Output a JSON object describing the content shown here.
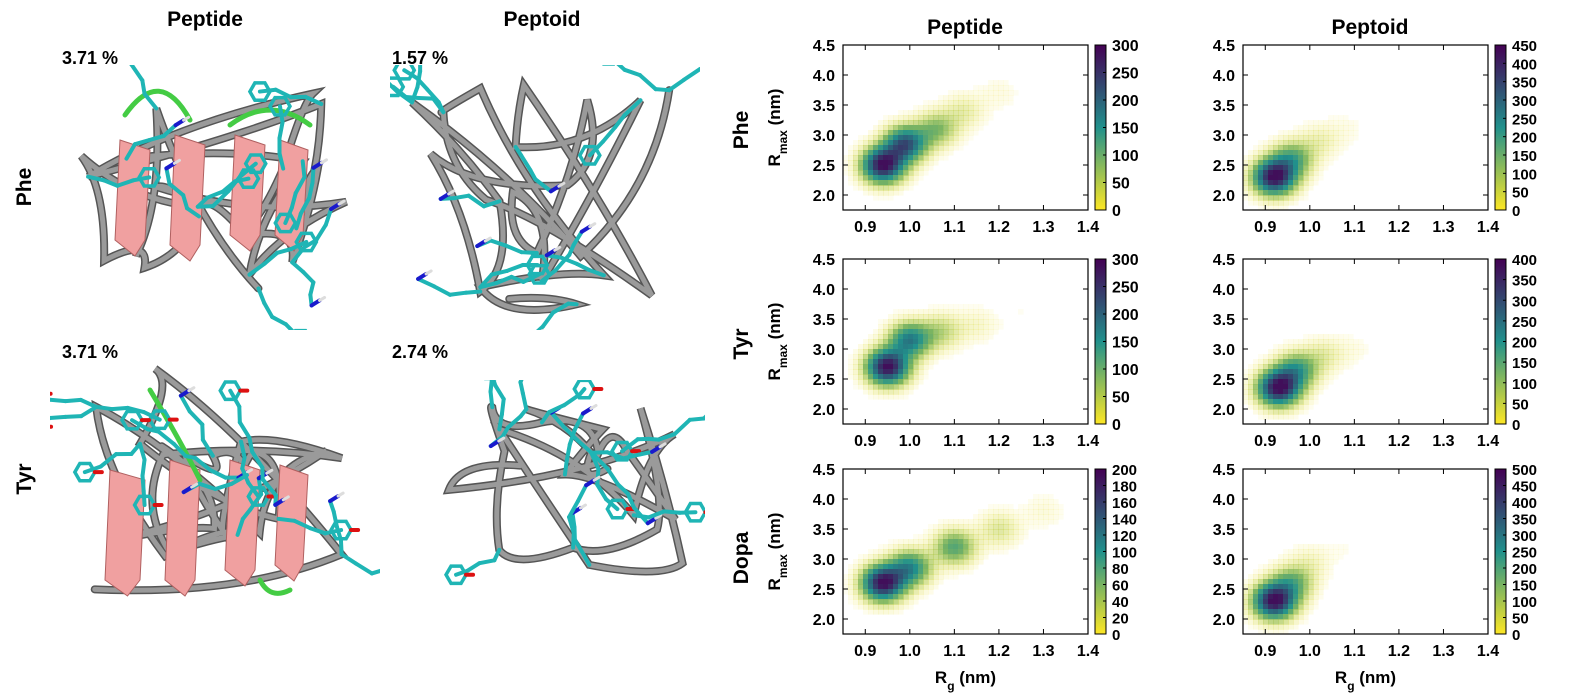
{
  "structures": {
    "col_headers": [
      "Peptide",
      "Peptoid"
    ],
    "row_labels": [
      "Phe",
      "Tyr"
    ],
    "percentages": [
      [
        "3.71 %",
        "1.57 %"
      ],
      [
        "3.71 %",
        "2.74 %"
      ]
    ]
  },
  "plots": {
    "col_headers": [
      "Peptide",
      "Peptoid"
    ],
    "row_labels": [
      "Phe",
      "Tyr",
      "Dopa"
    ],
    "xlabel_main": "R",
    "xlabel_sub": "g",
    "xlabel_unit": " (nm)",
    "ylabel_main": "R",
    "ylabel_sub": "max",
    "ylabel_unit": " (nm)"
  },
  "colors": {
    "viridis_low": "#fde725",
    "viridis_mid": "#21918c",
    "viridis_high": "#440154",
    "tube": "#9a9a9a",
    "sheet": "#f0a0a0",
    "turn": "#44cc44",
    "carbon": "#1fb5b5",
    "nitrogen": "#1a1acc",
    "oxygen": "#dd1111"
  },
  "chart_data": [
    {
      "type": "heatmap",
      "row": "Phe",
      "col": "Peptide",
      "x_ticks": [
        "0.9",
        "1.0",
        "1.1",
        "1.2",
        "1.3",
        "1.4"
      ],
      "y_ticks": [
        "2.0",
        "2.5",
        "3.0",
        "3.5",
        "4.0",
        "4.5"
      ],
      "xlim": [
        0.85,
        1.4
      ],
      "ylim": [
        1.75,
        4.5
      ],
      "colorbar_max": 300,
      "colorbar_ticks": [
        "0",
        "50",
        "100",
        "150",
        "200",
        "250",
        "300"
      ],
      "centers": [
        {
          "x": 0.94,
          "y": 2.5,
          "w": 1.0
        },
        {
          "x": 0.99,
          "y": 2.85,
          "w": 0.75
        },
        {
          "x": 1.06,
          "y": 3.1,
          "w": 0.3
        },
        {
          "x": 1.12,
          "y": 3.4,
          "w": 0.12
        },
        {
          "x": 1.2,
          "y": 3.7,
          "w": 0.04
        }
      ]
    },
    {
      "type": "heatmap",
      "row": "Phe",
      "col": "Peptoid",
      "x_ticks": [
        "0.9",
        "1.0",
        "1.1",
        "1.2",
        "1.3",
        "1.4"
      ],
      "y_ticks": [
        "2.0",
        "2.5",
        "3.0",
        "3.5",
        "4.0",
        "4.5"
      ],
      "xlim": [
        0.85,
        1.4
      ],
      "ylim": [
        1.75,
        4.5
      ],
      "colorbar_max": 450,
      "colorbar_ticks": [
        "0",
        "50",
        "100",
        "150",
        "200",
        "250",
        "300",
        "350",
        "400",
        "450"
      ],
      "centers": [
        {
          "x": 0.92,
          "y": 2.3,
          "w": 1.0
        },
        {
          "x": 0.96,
          "y": 2.6,
          "w": 0.4
        },
        {
          "x": 1.02,
          "y": 2.9,
          "w": 0.1
        },
        {
          "x": 1.08,
          "y": 3.1,
          "w": 0.03
        }
      ]
    },
    {
      "type": "heatmap",
      "row": "Tyr",
      "col": "Peptide",
      "x_ticks": [
        "0.9",
        "1.0",
        "1.1",
        "1.2",
        "1.3",
        "1.4"
      ],
      "y_ticks": [
        "2.0",
        "2.5",
        "3.0",
        "3.5",
        "4.0",
        "4.5"
      ],
      "xlim": [
        0.85,
        1.4
      ],
      "ylim": [
        1.75,
        4.5
      ],
      "colorbar_max": 300,
      "colorbar_ticks": [
        "0",
        "50",
        "100",
        "150",
        "200",
        "250",
        "300"
      ],
      "centers": [
        {
          "x": 0.95,
          "y": 2.7,
          "w": 1.0
        },
        {
          "x": 1.0,
          "y": 3.15,
          "w": 0.6
        },
        {
          "x": 1.07,
          "y": 3.3,
          "w": 0.2
        },
        {
          "x": 1.15,
          "y": 3.4,
          "w": 0.07
        },
        {
          "x": 1.25,
          "y": 3.6,
          "w": 0.02
        }
      ]
    },
    {
      "type": "heatmap",
      "row": "Tyr",
      "col": "Peptoid",
      "x_ticks": [
        "0.9",
        "1.0",
        "1.1",
        "1.2",
        "1.3",
        "1.4"
      ],
      "y_ticks": [
        "2.0",
        "2.5",
        "3.0",
        "3.5",
        "4.0",
        "4.5"
      ],
      "xlim": [
        0.85,
        1.4
      ],
      "ylim": [
        1.75,
        4.5
      ],
      "colorbar_max": 400,
      "colorbar_ticks": [
        "0",
        "50",
        "100",
        "150",
        "200",
        "250",
        "300",
        "350",
        "400"
      ],
      "centers": [
        {
          "x": 0.93,
          "y": 2.35,
          "w": 1.0
        },
        {
          "x": 0.97,
          "y": 2.65,
          "w": 0.45
        },
        {
          "x": 1.03,
          "y": 2.9,
          "w": 0.12
        },
        {
          "x": 1.1,
          "y": 3.0,
          "w": 0.03
        }
      ]
    },
    {
      "type": "heatmap",
      "row": "Dopa",
      "col": "Peptide",
      "x_ticks": [
        "0.9",
        "1.0",
        "1.1",
        "1.2",
        "1.3",
        "1.4"
      ],
      "y_ticks": [
        "2.0",
        "2.5",
        "3.0",
        "3.5",
        "4.0",
        "4.5"
      ],
      "xlim": [
        0.85,
        1.4
      ],
      "ylim": [
        1.75,
        4.5
      ],
      "colorbar_max": 200,
      "colorbar_ticks": [
        "0",
        "20",
        "40",
        "60",
        "80",
        "100",
        "120",
        "140",
        "160",
        "180",
        "200"
      ],
      "centers": [
        {
          "x": 0.94,
          "y": 2.6,
          "w": 1.0
        },
        {
          "x": 1.0,
          "y": 2.85,
          "w": 0.55
        },
        {
          "x": 1.1,
          "y": 3.2,
          "w": 0.4
        },
        {
          "x": 1.2,
          "y": 3.5,
          "w": 0.15
        },
        {
          "x": 1.3,
          "y": 3.8,
          "w": 0.05
        }
      ]
    },
    {
      "type": "heatmap",
      "row": "Dopa",
      "col": "Peptoid",
      "x_ticks": [
        "0.9",
        "1.0",
        "1.1",
        "1.2",
        "1.3",
        "1.4"
      ],
      "y_ticks": [
        "2.0",
        "2.5",
        "3.0",
        "3.5",
        "4.0",
        "4.5"
      ],
      "xlim": [
        0.85,
        1.4
      ],
      "ylim": [
        1.75,
        4.5
      ],
      "colorbar_max": 500,
      "colorbar_ticks": [
        "0",
        "50",
        "100",
        "150",
        "200",
        "250",
        "300",
        "350",
        "400",
        "450",
        "500"
      ],
      "centers": [
        {
          "x": 0.92,
          "y": 2.3,
          "w": 1.0
        },
        {
          "x": 0.96,
          "y": 2.6,
          "w": 0.35
        },
        {
          "x": 1.0,
          "y": 2.95,
          "w": 0.08
        },
        {
          "x": 1.08,
          "y": 3.2,
          "w": 0.02
        }
      ]
    }
  ]
}
